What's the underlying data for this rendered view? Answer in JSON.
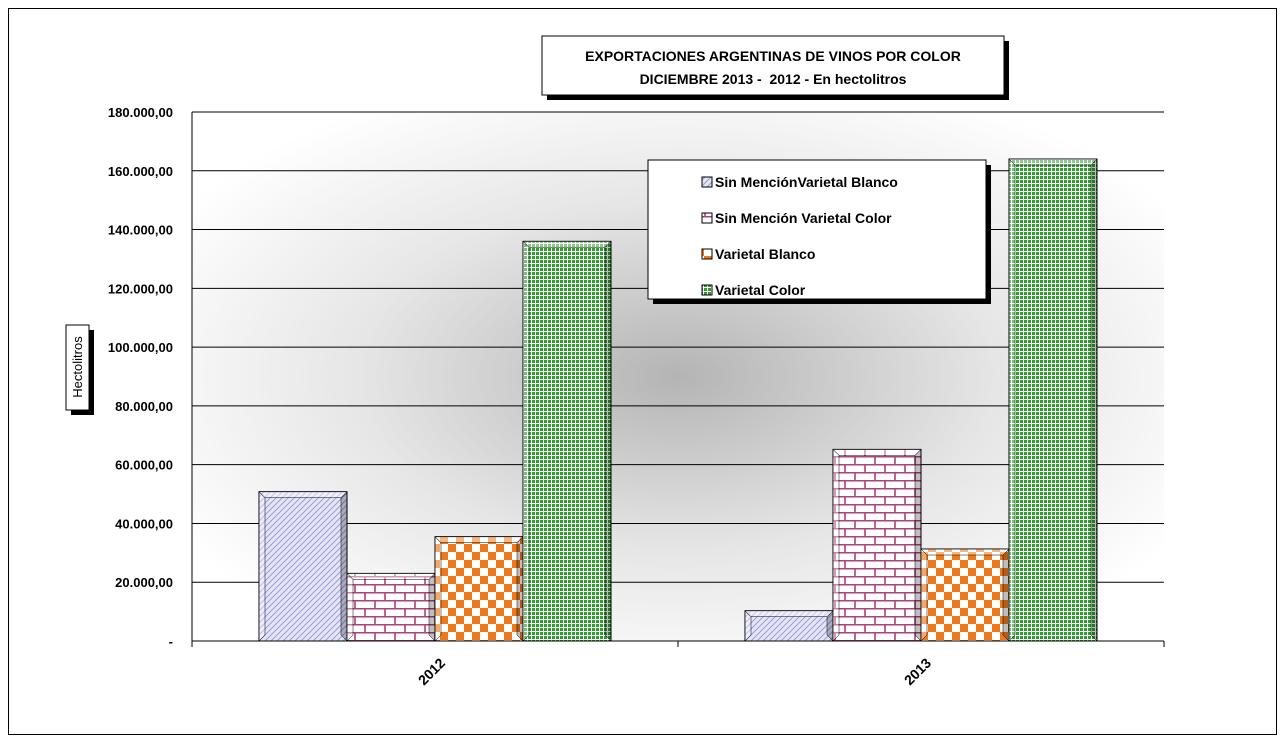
{
  "chart_data": {
    "type": "bar",
    "title": "EXPORTACIONES ARGENTINAS DE VINOS POR COLOR",
    "subtitle": "DICIEMBRE 2013 -  2012 - En hectolitros",
    "ylabel": "Hectolitros",
    "xlabel": "",
    "ylim": [
      0,
      180000
    ],
    "yticks": [
      0,
      20000,
      40000,
      60000,
      80000,
      100000,
      120000,
      140000,
      160000,
      180000
    ],
    "ytick_labels": [
      "-",
      "20.000,00",
      "40.000,00",
      "60.000,00",
      "80.000,00",
      "100.000,00",
      "120.000,00",
      "140.000,00",
      "160.000,00",
      "180.000,00"
    ],
    "categories": [
      "2012",
      "2013"
    ],
    "series": [
      {
        "name": "Sin MenciónVarietal Blanco",
        "values": [
          50800,
          10300
        ],
        "color": "#c8c8f0"
      },
      {
        "name": "Sin Mención Varietal Color",
        "values": [
          23000,
          65200
        ],
        "color": "#b0407a"
      },
      {
        "name": "Varietal Blanco",
        "values": [
          35500,
          31300
        ],
        "color": "#f07818"
      },
      {
        "name": "Varietal Color",
        "values": [
          136000,
          164000
        ],
        "color": "#30a030"
      }
    ],
    "grid": true,
    "legend_position": "top-right"
  }
}
